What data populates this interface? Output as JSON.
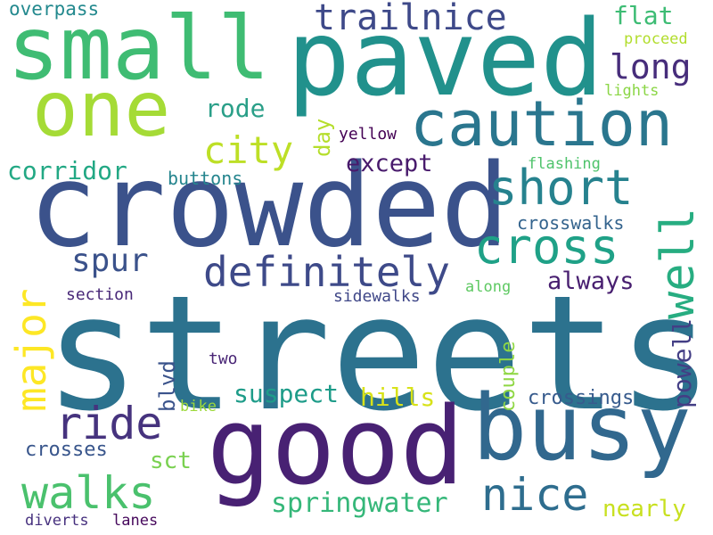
{
  "words": [
    {
      "text": "streets",
      "color": "#2c728e"
    },
    {
      "text": "crowded",
      "color": "#3b528b"
    },
    {
      "text": "paved",
      "color": "#21918c"
    },
    {
      "text": "good",
      "color": "#482173"
    },
    {
      "text": "busy",
      "color": "#31688e"
    },
    {
      "text": "small",
      "color": "#3fbc73"
    },
    {
      "text": "one",
      "color": "#a5db36"
    },
    {
      "text": "caution",
      "color": "#2a768e"
    },
    {
      "text": "short",
      "color": "#26828e"
    },
    {
      "text": "cross",
      "color": "#1fa187"
    },
    {
      "text": "well",
      "color": "#27ad81"
    },
    {
      "text": "definitely",
      "color": "#3e4a89"
    },
    {
      "text": "ride",
      "color": "#46337e"
    },
    {
      "text": "walks",
      "color": "#4ac16d"
    },
    {
      "text": "nice",
      "color": "#2e6d8e"
    },
    {
      "text": "major",
      "color": "#fde725"
    },
    {
      "text": "city",
      "color": "#bddf26"
    },
    {
      "text": "trailnice",
      "color": "#3e4989"
    },
    {
      "text": "long",
      "color": "#472d7b"
    },
    {
      "text": "spur",
      "color": "#3b528b"
    },
    {
      "text": "springwater",
      "color": "#35b779"
    },
    {
      "text": "corridor",
      "color": "#22a884"
    },
    {
      "text": "rode",
      "color": "#2a9f88"
    },
    {
      "text": "flat",
      "color": "#3dbc74"
    },
    {
      "text": "except",
      "color": "#481a6c"
    },
    {
      "text": "always",
      "color": "#481f70"
    },
    {
      "text": "suspect",
      "color": "#1e9c89"
    },
    {
      "text": "hills",
      "color": "#d8e219"
    },
    {
      "text": "powell",
      "color": "#433e85"
    },
    {
      "text": "nearly",
      "color": "#c8e020"
    },
    {
      "text": "sct",
      "color": "#7ad151"
    },
    {
      "text": "crosses",
      "color": "#39568c"
    },
    {
      "text": "crossings",
      "color": "#375b8d"
    },
    {
      "text": "couple",
      "color": "#8fd744"
    },
    {
      "text": "blvd",
      "color": "#3a538b"
    },
    {
      "text": "day",
      "color": "#b5de2b"
    },
    {
      "text": "buttons",
      "color": "#25858e"
    },
    {
      "text": "crosswalks",
      "color": "#33638d"
    },
    {
      "text": "overpass",
      "color": "#23898e"
    },
    {
      "text": "proceed",
      "color": "#b2dd2d"
    },
    {
      "text": "lights",
      "color": "#8bd646"
    },
    {
      "text": "flashing",
      "color": "#4ec36b"
    },
    {
      "text": "yellow",
      "color": "#440154"
    },
    {
      "text": "sidewalks",
      "color": "#3f4788"
    },
    {
      "text": "section",
      "color": "#482878"
    },
    {
      "text": "along",
      "color": "#5ec962"
    },
    {
      "text": "two",
      "color": "#482475"
    },
    {
      "text": "bike",
      "color": "#9dd93b"
    },
    {
      "text": "diverts",
      "color": "#46307e"
    },
    {
      "text": "lanes",
      "color": "#46085c"
    }
  ]
}
